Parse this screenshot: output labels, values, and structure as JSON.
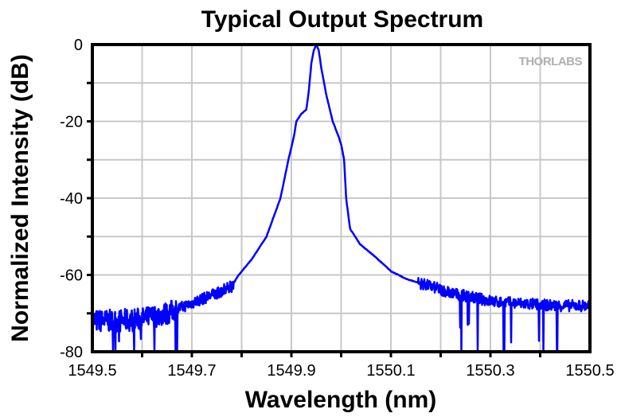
{
  "chart_data": {
    "type": "line",
    "title": "Typical Output Spectrum",
    "xlabel": "Wavelength (nm)",
    "ylabel": "Normalized Intensity (dB)",
    "xlim": [
      1549.5,
      1550.5
    ],
    "ylim": [
      -80,
      0
    ],
    "xticks": [
      "1549.5",
      "1549.7",
      "1549.9",
      "1550.1",
      "1550.3",
      "1550.5"
    ],
    "yticks": [
      "0",
      "-20",
      "-40",
      "-60",
      "-80"
    ],
    "grid": true,
    "line_color": "#0000ff",
    "grid_color": "#c8c8c8",
    "watermark": "THORLABS",
    "series": [
      {
        "x": [
          1549.5,
          1549.55,
          1549.6,
          1549.65,
          1549.706,
          1549.746,
          1549.78,
          1549.794,
          1549.82,
          1549.85,
          1549.878,
          1549.894,
          1549.905,
          1549.91,
          1549.92,
          1549.93,
          1549.935,
          1549.94,
          1549.945,
          1549.95,
          1549.955,
          1549.96,
          1549.97,
          1549.983,
          1549.995,
          1550.0,
          1550.006,
          1550.01,
          1550.018,
          1550.038,
          1550.066,
          1550.1,
          1550.13,
          1550.18,
          1550.23,
          1550.31,
          1550.43,
          1550.5
        ],
        "y": [
          -72,
          -72,
          -71.5,
          -70,
          -67,
          -65,
          -63,
          -60,
          -56,
          -50,
          -40,
          -30,
          -24,
          -20,
          -18,
          -17,
          -12,
          -5,
          -1.5,
          0,
          -1.5,
          -6,
          -13,
          -20,
          -24,
          -26,
          -30,
          -40,
          -48,
          -52,
          -55,
          -59,
          -61,
          -63,
          -65,
          -67,
          -68,
          -68
        ]
      }
    ]
  }
}
